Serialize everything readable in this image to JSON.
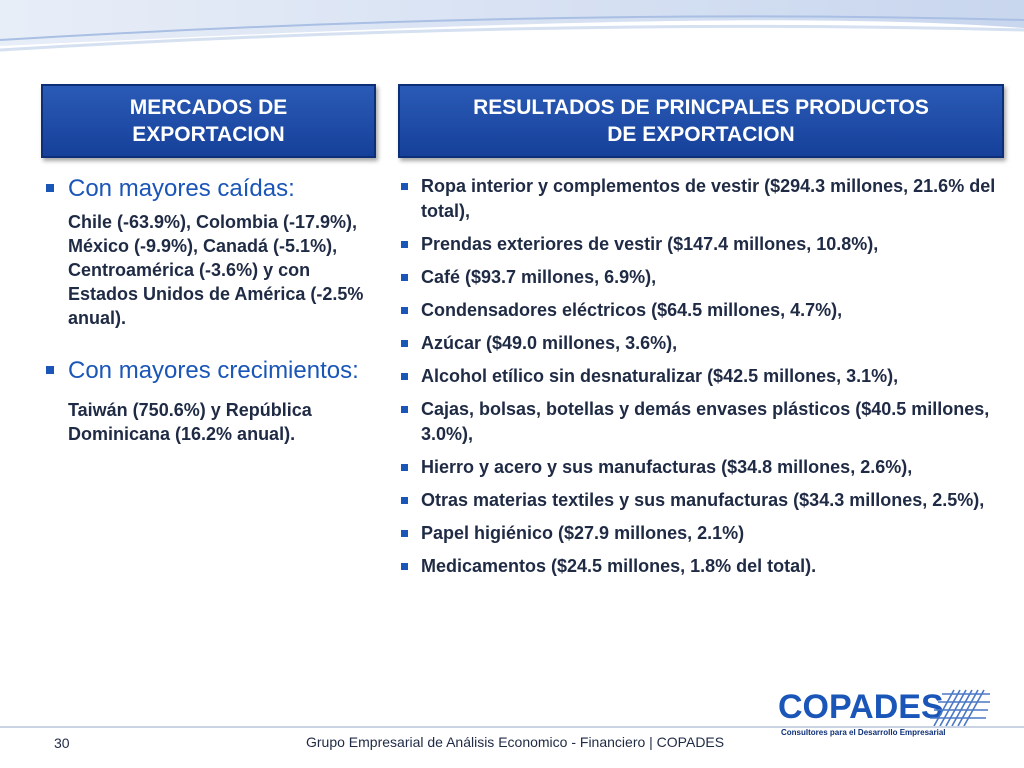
{
  "header_left": [
    "MERCADOS DE",
    "EXPORTACION"
  ],
  "header_right": [
    "RESULTADOS DE PRINCPALES PRODUCTOS",
    "DE EXPORTACION"
  ],
  "left": {
    "section1_title": "Con mayores caídas:",
    "section1_body": "Chile (-63.9%), Colombia (-17.9%), México (-9.9%), Canadá (-5.1%), Centroamérica (-3.6%) y con Estados Unidos de América (-2.5% anual).",
    "section2_title": "Con mayores crecimientos:",
    "section2_body": "Taiwán (750.6%) y República Dominicana (16.2% anual)."
  },
  "right_items": [
    "Ropa interior y complementos de vestir ($294.3 millones, 21.6% del total),",
    "Prendas exteriores de vestir ($147.4 millones, 10.8%),",
    "Café ($93.7 millones, 6.9%),",
    "Condensadores eléctricos ($64.5 millones, 4.7%),",
    "Azúcar ($49.0 millones, 3.6%),",
    "Alcohol etílico sin desnaturalizar ($42.5 millones, 3.1%),",
    "Cajas, bolsas, botellas y demás envases plásticos ($40.5 millones, 3.0%),",
    "Hierro y acero y sus manufacturas ($34.8 millones, 2.6%),",
    "Otras materias textiles y sus manufacturas ($34.3 millones, 2.5%),",
    "Papel higiénico ($27.9 millones, 2.1%)",
    "Medicamentos ($24.5 millones, 1.8% del total)."
  ],
  "logo": {
    "name": "COPADES",
    "tagline": "Consultores para el Desarrollo Empresarial"
  },
  "footer": {
    "page": "30",
    "text": "Grupo Empresarial de Análisis Economico - Financiero | COPADES"
  },
  "colors": {
    "header_bg": "#1e4ea8",
    "accent": "#1a55b8",
    "text": "#1f2a44"
  }
}
